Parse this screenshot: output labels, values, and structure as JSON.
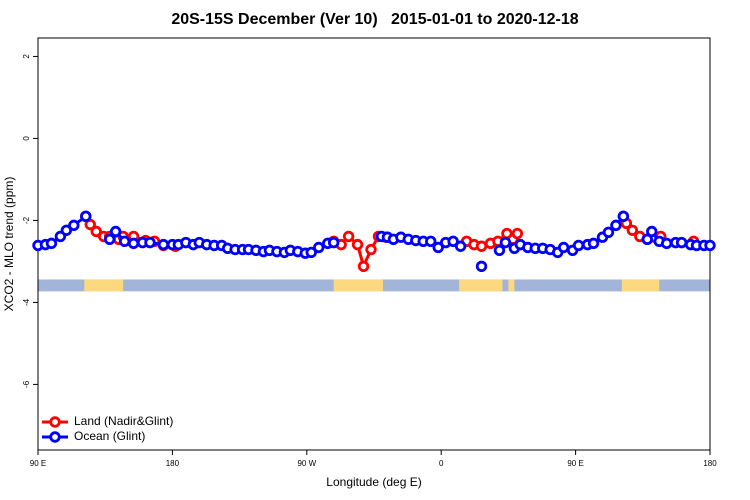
{
  "chart_data": {
    "type": "line",
    "title": "20S-15S December (Ver 10)   2015-01-01 to 2020-12-18",
    "x_label": "Longitude (deg E)",
    "y_label": "XCO2 - MLO trend (ppm)",
    "xlim": [
      90,
      540
    ],
    "xticks": [
      {
        "value": 90,
        "label": "90 E"
      },
      180,
      {
        "value": 270,
        "label": "90 W"
      },
      {
        "value": 360,
        "label": "0"
      },
      {
        "value": 450,
        "label": "90 E"
      },
      {
        "value": 540,
        "label": "180"
      }
    ],
    "ylim": [
      -7.6,
      2.45
    ],
    "yticks": [
      2,
      0,
      -2,
      -4,
      -6
    ],
    "legend": "bottom-left",
    "series": [
      {
        "name": "Land (Nadir&Glint)",
        "color": "#ff0000",
        "x": [
          122,
          125,
          129,
          134,
          138,
          144,
          147,
          154,
          162,
          168,
          174,
          182,
          235,
          288,
          293,
          298,
          304,
          308,
          313,
          318,
          323,
          350,
          377,
          382,
          387,
          393,
          398,
          404,
          408,
          411,
          450,
          482,
          484,
          488,
          493,
          498,
          503,
          507,
          518,
          529
        ],
        "values": [
          -1.9,
          -2.1,
          -2.27,
          -2.39,
          -2.39,
          -2.46,
          -2.39,
          -2.39,
          -2.49,
          -2.51,
          -2.61,
          -2.63,
          null,
          -2.51,
          -2.59,
          -2.39,
          -2.59,
          -3.12,
          -2.71,
          -2.39,
          -2.41,
          null,
          -2.51,
          -2.59,
          -2.63,
          -2.56,
          -2.51,
          -2.32,
          -2.46,
          -2.32,
          null,
          -1.9,
          -2.07,
          -2.24,
          -2.39,
          -2.46,
          -2.41,
          -2.39,
          null,
          -2.51
        ]
      },
      {
        "name": "Ocean (Glint)",
        "color": "#0000ff",
        "x": [
          90,
          95,
          99,
          105,
          109,
          114,
          122,
          130,
          138,
          142,
          148,
          154,
          160,
          165,
          174,
          180,
          184,
          189,
          194,
          198,
          203,
          208,
          213,
          217,
          222,
          227,
          231,
          236,
          241,
          245,
          250,
          255,
          259,
          264,
          269,
          273,
          278,
          284,
          288,
          304,
          320,
          324,
          328,
          333,
          338,
          343,
          348,
          353,
          358,
          363,
          368,
          373,
          380,
          387,
          393,
          399,
          403,
          409,
          413,
          418,
          423,
          428,
          433,
          438,
          442,
          448,
          452,
          458,
          462,
          468,
          472,
          477,
          482,
          490,
          498,
          501,
          506,
          511,
          517,
          521,
          527,
          531,
          536,
          540
        ],
        "values": [
          -2.61,
          -2.59,
          -2.56,
          -2.39,
          -2.24,
          -2.12,
          -1.9,
          null,
          -2.46,
          -2.27,
          -2.51,
          -2.56,
          -2.54,
          -2.54,
          -2.59,
          -2.59,
          -2.59,
          -2.54,
          -2.59,
          -2.54,
          -2.59,
          -2.61,
          -2.61,
          -2.68,
          -2.71,
          -2.71,
          -2.71,
          -2.73,
          -2.76,
          -2.73,
          -2.76,
          -2.78,
          -2.73,
          -2.76,
          -2.8,
          -2.78,
          -2.66,
          -2.56,
          -2.54,
          null,
          -2.39,
          -2.41,
          -2.46,
          -2.41,
          -2.46,
          -2.49,
          -2.51,
          -2.51,
          -2.66,
          -2.54,
          -2.51,
          -2.63,
          null,
          -3.12,
          null,
          -2.73,
          -2.54,
          -2.68,
          -2.59,
          -2.66,
          -2.68,
          -2.68,
          -2.71,
          -2.78,
          -2.66,
          -2.73,
          -2.61,
          -2.59,
          -2.56,
          -2.41,
          -2.29,
          -2.12,
          -1.9,
          null,
          -2.46,
          -2.27,
          -2.51,
          -2.56,
          -2.54,
          -2.54,
          -2.59,
          -2.61,
          -2.61,
          -2.61
        ]
      }
    ],
    "surface_strip": {
      "ylim": [
        -3.73,
        -3.44
      ],
      "ocean_color": "#a2b5d8",
      "land_color": "#fcd87f",
      "land_ranges": [
        [
          121,
          147
        ],
        [
          288,
          321
        ],
        [
          372,
          401
        ],
        [
          405,
          409
        ],
        [
          481,
          506
        ]
      ]
    }
  }
}
